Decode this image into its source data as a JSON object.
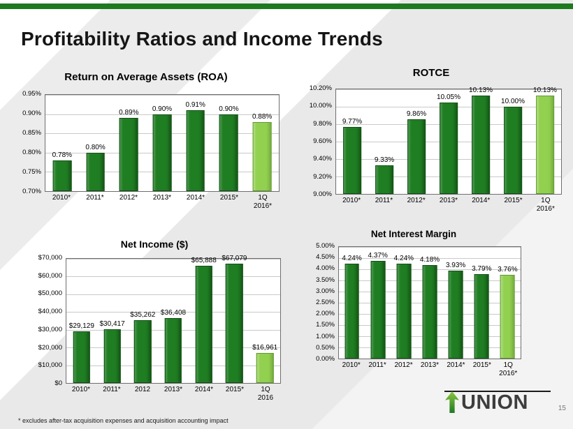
{
  "slide": {
    "title": "Profitability Ratios and Income Trends",
    "footnote": "* excludes after-tax acquisition expenses and acquisition accounting impact",
    "page_number": "15",
    "logo_text": "UNION"
  },
  "colors": {
    "top_bar": "#1e7a1f",
    "bar_dark": "#1f7d22",
    "bar_dark_edge": "#0f4f12",
    "bar_light": "#92d050",
    "bar_light_edge": "#5f9a2c"
  },
  "chart_data": [
    {
      "id": "roa",
      "type": "bar",
      "title": "Return on Average Assets (ROA)",
      "categories": [
        "2010*",
        "2011*",
        "2012*",
        "2013*",
        "2014*",
        "2015*",
        "1Q\n2016*"
      ],
      "values": [
        0.78,
        0.8,
        0.89,
        0.9,
        0.91,
        0.9,
        0.88
      ],
      "value_labels": [
        "0.78%",
        "0.80%",
        "0.89%",
        "0.90%",
        "0.91%",
        "0.90%",
        "0.88%"
      ],
      "ylim": [
        0.7,
        0.95
      ],
      "yticks": [
        "0.95%",
        "0.90%",
        "0.85%",
        "0.80%",
        "0.75%",
        "0.70%"
      ],
      "grid": true,
      "legend": false,
      "highlight_last": true
    },
    {
      "id": "rotce",
      "type": "bar",
      "title": "ROTCE",
      "categories": [
        "2010*",
        "2011*",
        "2012*",
        "2013*",
        "2014*",
        "2015*",
        "1Q\n2016*"
      ],
      "values": [
        9.77,
        9.33,
        9.86,
        10.05,
        10.13,
        10.0,
        10.13
      ],
      "value_labels": [
        "9.77%",
        "9.33%",
        "9.86%",
        "10.05%",
        "10.13%",
        "10.00%",
        "10.13%"
      ],
      "ylim": [
        9.0,
        10.2
      ],
      "yticks": [
        "10.20%",
        "10.00%",
        "9.80%",
        "9.60%",
        "9.40%",
        "9.20%",
        "9.00%"
      ],
      "grid": true,
      "legend": false,
      "highlight_last": true
    },
    {
      "id": "net-income",
      "type": "bar",
      "title": "Net Income ($)",
      "categories": [
        "2010*",
        "2011*",
        "2012",
        "2013*",
        "2014*",
        "2015*",
        "1Q\n2016"
      ],
      "values": [
        29129,
        30417,
        35262,
        36408,
        65888,
        67079,
        16961
      ],
      "value_labels": [
        "$29,129",
        "$30,417",
        "$35,262",
        "$36,408",
        "$65,888",
        "$67,079",
        "$16,961"
      ],
      "ylim": [
        0,
        70000
      ],
      "yticks": [
        "$70,000",
        "$60,000",
        "$50,000",
        "$40,000",
        "$30,000",
        "$20,000",
        "$10,000",
        "$0"
      ],
      "grid": true,
      "legend": false,
      "highlight_last": true
    },
    {
      "id": "nim",
      "type": "bar",
      "title": "Net Interest Margin",
      "categories": [
        "2010*",
        "2011*",
        "2012*",
        "2013*",
        "2014*",
        "2015*",
        "1Q\n2016*"
      ],
      "values": [
        4.24,
        4.37,
        4.24,
        4.18,
        3.93,
        3.79,
        3.76
      ],
      "value_labels": [
        "4.24%",
        "4.37%",
        "4.24%",
        "4.18%",
        "3.93%",
        "3.79%",
        "3.76%"
      ],
      "ylim": [
        0,
        5.0
      ],
      "yticks": [
        "5.00%",
        "4.50%",
        "4.00%",
        "3.50%",
        "3.00%",
        "2.50%",
        "2.00%",
        "1.50%",
        "1.00%",
        "0.50%",
        "0.00%"
      ],
      "grid": true,
      "legend": false,
      "highlight_last": true
    }
  ]
}
